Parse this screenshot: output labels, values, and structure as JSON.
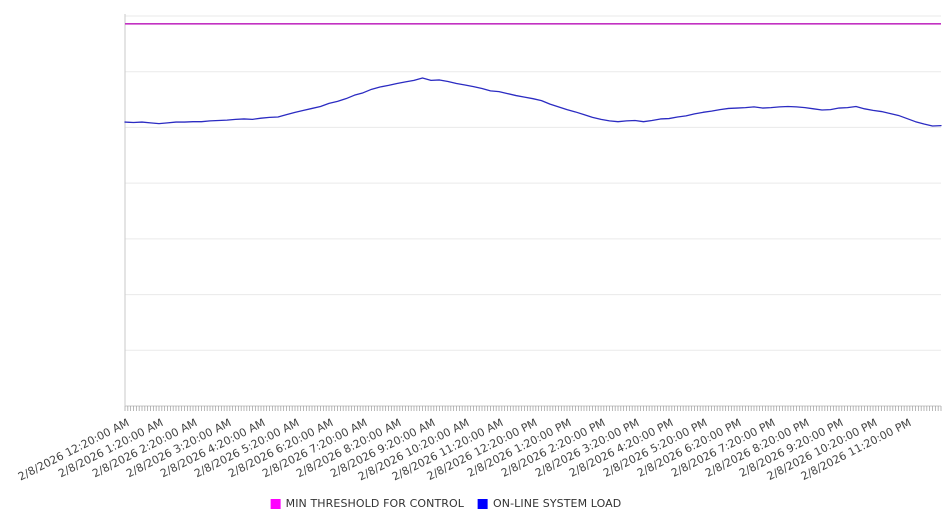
{
  "chart": {
    "background_color": "#ffffff",
    "axis_color": "#c9c9c9",
    "gridline_color": "#eaeaea",
    "tick_color": "#999999",
    "x_label_color": "#444444",
    "legend_text_color": "#333333"
  },
  "chart_data": {
    "type": "line",
    "title": "",
    "xlabel": "",
    "ylabel": "",
    "y_axis_labels_visible": false,
    "ylim": [
      0,
      100
    ],
    "y_units": "relative-load (no y-axis labels shown in chart)",
    "y_gridline_divisions": 7,
    "x_range_hours": 24,
    "x_minor_tick_interval_minutes": 5,
    "x_tick_labels": [
      "2/8/2026 12:20:00 AM",
      "2/8/2026 1:20:00 AM",
      "2/8/2026 2:20:00 AM",
      "2/8/2026 3:20:00 AM",
      "2/8/2026 4:20:00 AM",
      "2/8/2026 5:20:00 AM",
      "2/8/2026 6:20:00 AM",
      "2/8/2026 7:20:00 AM",
      "2/8/2026 8:20:00 AM",
      "2/8/2026 9:20:00 AM",
      "2/8/2026 10:20:00 AM",
      "2/8/2026 11:20:00 AM",
      "2/8/2026 12:20:00 PM",
      "2/8/2026 1:20:00 PM",
      "2/8/2026 2:20:00 PM",
      "2/8/2026 3:20:00 PM",
      "2/8/2026 4:20:00 PM",
      "2/8/2026 5:20:00 PM",
      "2/8/2026 6:20:00 PM",
      "2/8/2026 7:20:00 PM",
      "2/8/2026 8:20:00 PM",
      "2/8/2026 9:20:00 PM",
      "2/8/2026 10:20:00 PM",
      "2/8/2026 11:20:00 PM"
    ],
    "legend_position": "bottom-center",
    "series": [
      {
        "name": "MIN THRESHOLD FOR CONTROL",
        "type": "constant-line",
        "value": 98,
        "legend_color": "#ff00ff",
        "line_color": "#c231c2"
      },
      {
        "name": "ON-LINE SYSTEM LOAD",
        "type": "line",
        "start_time": "2/8/2026 12:20:00 AM",
        "sample_interval_minutes": 15,
        "legend_color": "#0000ff",
        "line_color": "#2b2bc2",
        "values": [
          72.8,
          72.7,
          72.8,
          72.6,
          72.4,
          72.6,
          72.8,
          72.8,
          72.9,
          72.9,
          73.1,
          73.2,
          73.3,
          73.5,
          73.6,
          73.5,
          73.8,
          74.0,
          74.1,
          74.7,
          75.3,
          75.8,
          76.3,
          76.8,
          77.6,
          78.1,
          78.8,
          79.7,
          80.3,
          81.2,
          81.8,
          82.2,
          82.7,
          83.1,
          83.5,
          84.1,
          83.5,
          83.6,
          83.2,
          82.7,
          82.3,
          81.9,
          81.4,
          80.8,
          80.6,
          80.1,
          79.6,
          79.2,
          78.8,
          78.3,
          77.4,
          76.7,
          76.0,
          75.4,
          74.7,
          74.0,
          73.5,
          73.1,
          72.9,
          73.1,
          73.2,
          72.9,
          73.2,
          73.6,
          73.7,
          74.1,
          74.4,
          74.9,
          75.3,
          75.6,
          76.0,
          76.3,
          76.4,
          76.5,
          76.7,
          76.4,
          76.5,
          76.7,
          76.8,
          76.7,
          76.5,
          76.2,
          75.9,
          76.0,
          76.4,
          76.5,
          76.8,
          76.2,
          75.8,
          75.5,
          75.0,
          74.5,
          73.7,
          72.9,
          72.3,
          71.8,
          71.9
        ]
      }
    ]
  }
}
